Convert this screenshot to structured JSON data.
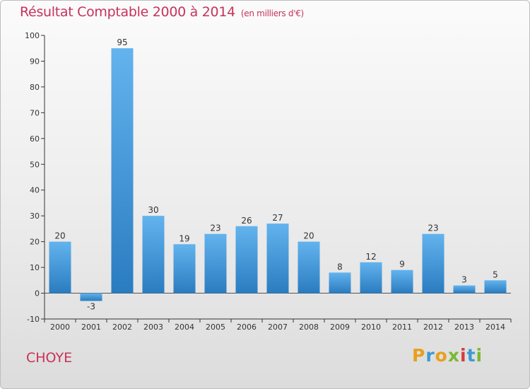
{
  "header": {
    "title": "Résultat Comptable 2000 à 2014",
    "subtitle": "(en milliers d'€)"
  },
  "footer": {
    "commune": "CHOYE",
    "logo_text": "Proxiti"
  },
  "colors": {
    "title": "#c8325a",
    "bar_top": "#63b3ee",
    "bar_bottom": "#2a7cc0",
    "logo_letters": [
      "#e8a01c",
      "#3c9ad6",
      "#e8a01c",
      "#7ab834",
      "#d43c3c",
      "#3c9ad6",
      "#7ab834"
    ]
  },
  "chart_data": {
    "type": "bar",
    "title": "Résultat Comptable 2000 à 2014",
    "subtitle": "(en milliers d'€)",
    "xlabel": "",
    "ylabel": "",
    "categories": [
      "2000",
      "2001",
      "2002",
      "2003",
      "2004",
      "2005",
      "2006",
      "2007",
      "2008",
      "2009",
      "2010",
      "2011",
      "2012",
      "2013",
      "2014"
    ],
    "values": [
      20,
      -3,
      95,
      30,
      19,
      23,
      26,
      27,
      20,
      8,
      12,
      9,
      23,
      3,
      5
    ],
    "data_labels": [
      "20",
      "-3",
      "95",
      "30",
      "19",
      "23",
      "26",
      "27",
      "20",
      "8",
      "12",
      "9",
      "23",
      "3",
      "5"
    ],
    "ylim": [
      -10,
      100
    ],
    "yticks": [
      -10,
      0,
      10,
      20,
      30,
      40,
      50,
      60,
      70,
      80,
      90,
      100
    ],
    "ytick_labels": [
      "-10",
      "0",
      "10",
      "20",
      "30",
      "40",
      "50",
      "60",
      "70",
      "80",
      "90",
      "100"
    ],
    "grid": false,
    "legend": "none"
  }
}
